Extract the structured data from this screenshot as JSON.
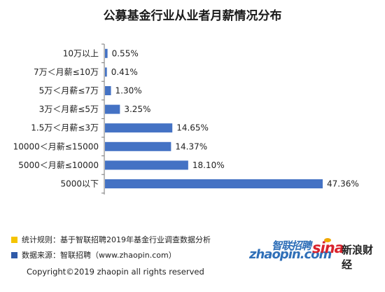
{
  "title": "公募基金行业从业者月薪情况分布",
  "chart_data": {
    "type": "bar",
    "orientation": "horizontal",
    "categories": [
      "10万以上",
      "7万＜月薪≤10万",
      "5万＜月薪≤7万",
      "3万＜月薪≤5万",
      "1.5万＜月薪≤3万",
      "10000＜月薪≤15000",
      "5000＜月薪≤10000",
      "5000以下"
    ],
    "values": [
      0.55,
      0.41,
      1.3,
      3.25,
      14.65,
      14.37,
      18.1,
      47.36
    ],
    "value_labels": [
      "0.55%",
      "0.41%",
      "1.30%",
      "3.25%",
      "14.65%",
      "14.37%",
      "18.10%",
      "47.36%"
    ],
    "unit": "%",
    "bar_color": "#4472c4",
    "xlim": [
      0,
      50
    ],
    "grid": false,
    "legend": "none"
  },
  "notes": {
    "rule": "统计规则：基于智联招聘2019年基金行业调查数据分析",
    "source": "数据来源：智联招聘（www.zhaopin.com）",
    "rule_color": "#f5c400",
    "source_color": "#2f5aa8"
  },
  "copyright": "Copyright©2019 zhaopin all rights reserved",
  "logos": {
    "zhaopin_cn": "智联招聘",
    "zhaopin_en": "zhaopin.com",
    "sina": "sina",
    "sina_finance": "新浪财经"
  }
}
